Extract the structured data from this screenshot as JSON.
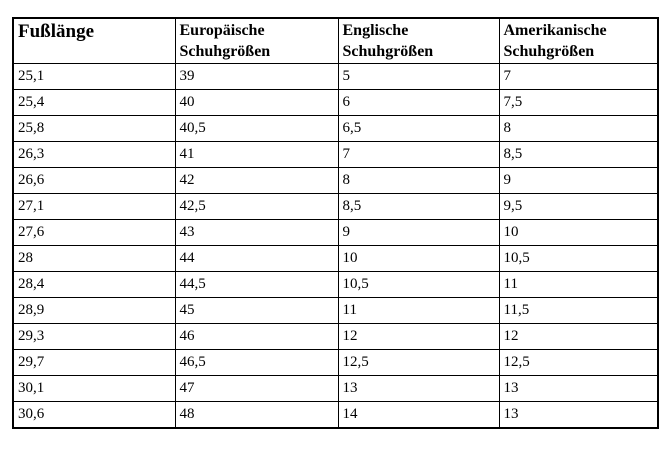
{
  "table": {
    "title_semantics": "shoe-size-conversion-table",
    "column_keys": [
      "fusslaenge",
      "eu",
      "uk",
      "us"
    ],
    "headers": [
      "Fußlänge",
      "Europäische Schuhgrößen",
      "Englische Schuhgrößen",
      "Amerikanische Schuhgrößen"
    ],
    "rows": [
      [
        "25,1",
        "39",
        "5",
        "7"
      ],
      [
        "25,4",
        "40",
        "6",
        "7,5"
      ],
      [
        "25,8",
        "40,5",
        "6,5",
        "8"
      ],
      [
        "26,3",
        "41",
        "7",
        "8,5"
      ],
      [
        "26,6",
        "42",
        "8",
        "9"
      ],
      [
        "27,1",
        "42,5",
        "8,5",
        "9,5"
      ],
      [
        "27,6",
        "43",
        "9",
        "10"
      ],
      [
        "28",
        "44",
        "10",
        "10,5"
      ],
      [
        "28,4",
        "44,5",
        "10,5",
        "11"
      ],
      [
        "28,9",
        "45",
        "11",
        "11,5"
      ],
      [
        "29,3",
        "46",
        "12",
        "12"
      ],
      [
        "29,7",
        "46,5",
        "12,5",
        "12,5"
      ],
      [
        "30,1",
        "47",
        "13",
        "13"
      ],
      [
        "30,6",
        "48",
        "14",
        "13"
      ]
    ],
    "colors": {
      "border": "#000000",
      "text": "#000000",
      "background": "#ffffff"
    }
  }
}
